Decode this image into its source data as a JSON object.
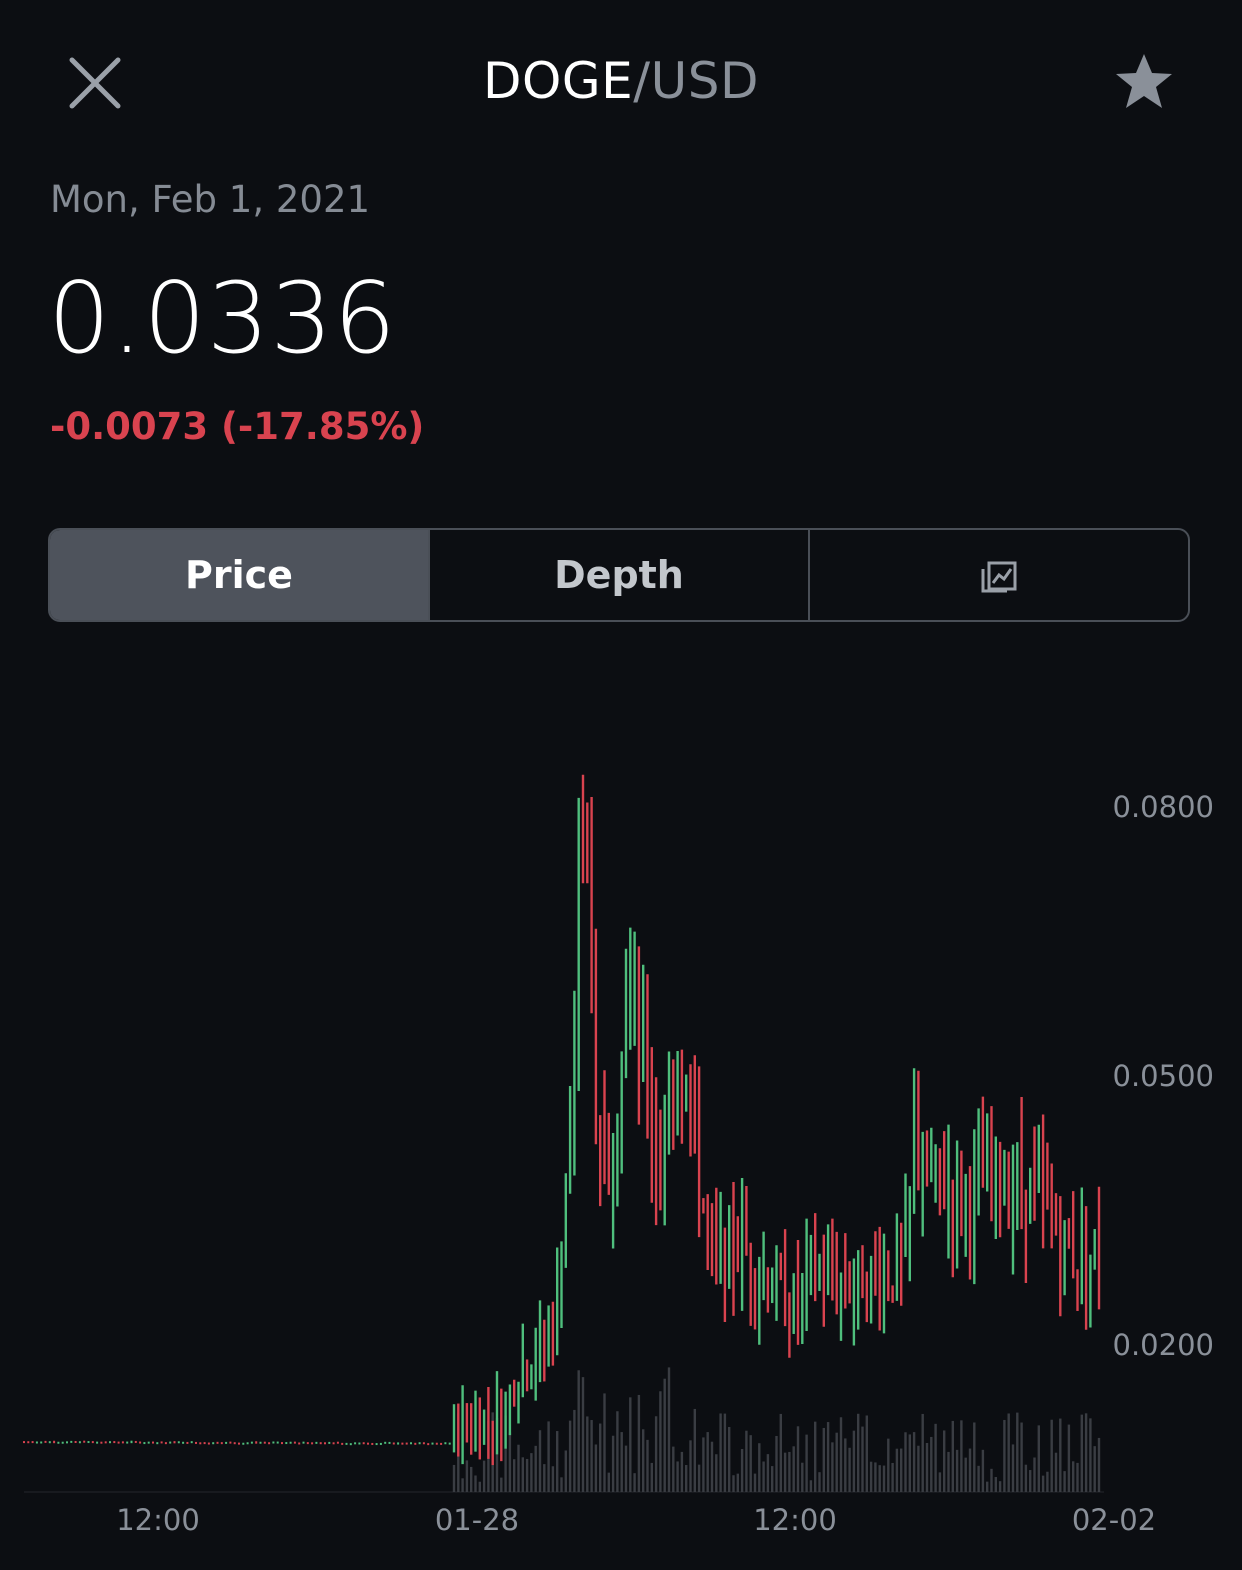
{
  "header": {
    "pair_base": "DOGE",
    "pair_separator": "/",
    "pair_quote": "USD"
  },
  "summary": {
    "date": "Mon, Feb 1, 2021",
    "price": "0.0336",
    "change": "-0.0073 (-17.85%)"
  },
  "tabs": [
    {
      "label": "Price",
      "active": true
    },
    {
      "label": "Depth",
      "active": false
    },
    {
      "label": "",
      "icon": "chart-overlay-icon",
      "active": false
    }
  ],
  "colors": {
    "background": "#0c0e12",
    "up": "#4fbf7d",
    "down": "#d9434f",
    "volume": "#3a3d43",
    "muted": "#858b94"
  },
  "chart_data": {
    "type": "candlestick",
    "yticks": [
      "0.0800",
      "0.0500",
      "0.0200"
    ],
    "xticks": [
      "12:00",
      "01-28",
      "12:00",
      "02-02"
    ],
    "ylim": [
      0.0055,
      0.092
    ],
    "last_close": 0.0336
  }
}
